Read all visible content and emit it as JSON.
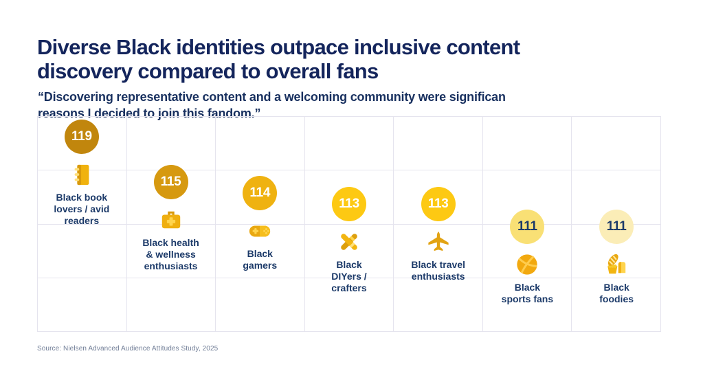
{
  "header": {
    "title": "Diverse Black identities outpace inclusive content discovery compared to overall fans",
    "title_lines": [
      "Diverse Black identities outpace inclusive content",
      "discovery compared to overall fans"
    ],
    "subtitle": "“Discovering representative content and a welcoming community were significan reasons I decided to join this fandom.”",
    "subtitle_lines": [
      "“Discovering representative content and a welcoming community were significan",
      "reasons I decided to join this fandom.”"
    ]
  },
  "footer": {
    "source": "Source: Nielsen Advanced Audience Attitudes Study, 2025"
  },
  "colors": {
    "title_navy": "#14255C",
    "label_navy": "#1C3A69",
    "grid_line": "#E5E4EE",
    "source_gray": "#707D96",
    "background": "#FFFFFF"
  },
  "chart_data": {
    "type": "scatter",
    "title": "Diverse Black identities outpace inclusive content discovery compared to overall fans",
    "subtitle": "“Discovering representative content and a welcoming community were significan reasons I decided to join this fandom.”",
    "source": "Source: Nielsen Advanced Audience Attitudes Study, 2025",
    "xlabel": "",
    "ylabel": "",
    "grid": true,
    "legend": false,
    "categories": [
      "Black book lovers / avid readers",
      "Black health & wellness enthusiasts",
      "Black gamers",
      "Black DIYers / crafters",
      "Black travel enthusiasts",
      "Black sports fans",
      "Black foodies"
    ],
    "values": [
      119,
      115,
      114,
      113,
      113,
      111,
      111
    ],
    "items": [
      {
        "label": "Black book lovers / avid readers",
        "label_lines": [
          "Black book",
          "lovers / avid",
          "readers"
        ],
        "value": 119,
        "icon": "book-icon",
        "circle_color": "#C1860D",
        "value_text_color": "#FFFFFF"
      },
      {
        "label": "Black health & wellness enthusiasts",
        "label_lines": [
          "Black health",
          "& wellness",
          "enthusiasts"
        ],
        "value": 115,
        "icon": "first-aid-kit-icon",
        "circle_color": "#D69910",
        "value_text_color": "#FFFFFF"
      },
      {
        "label": "Black gamers",
        "label_lines": [
          "Black",
          "gamers"
        ],
        "value": 114,
        "icon": "gamepad-icon",
        "circle_color": "#EFB211",
        "value_text_color": "#FFFFFF"
      },
      {
        "label": "Black DIYers / crafters",
        "label_lines": [
          "Black",
          "DIYers /",
          "crafters"
        ],
        "value": 113,
        "icon": "crossed-tools-icon",
        "circle_color": "#FDC913",
        "value_text_color": "#FFFFFF"
      },
      {
        "label": "Black travel enthusiasts",
        "label_lines": [
          "Black travel",
          "enthusiasts"
        ],
        "value": 113,
        "icon": "airplane-icon",
        "circle_color": "#FDC913",
        "value_text_color": "#FFFFFF"
      },
      {
        "label": "Black sports fans",
        "label_lines": [
          "Black",
          "sports fans"
        ],
        "value": 111,
        "icon": "basketball-icon",
        "circle_color": "#F9E075",
        "value_text_color": "#1C3A69"
      },
      {
        "label": "Black foodies",
        "label_lines": [
          "Black",
          "foodies"
        ],
        "value": 111,
        "icon": "bread-icon",
        "circle_color": "#FBEDB7",
        "value_text_color": "#1C3A69"
      }
    ]
  }
}
